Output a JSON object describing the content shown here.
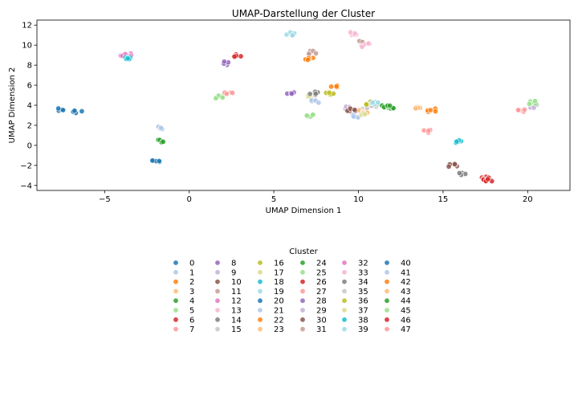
{
  "chart_data": {
    "type": "scatter",
    "title": "UMAP-Darstellung der Cluster",
    "xlabel": "UMAP Dimension 1",
    "ylabel": "UMAP Dimension 2",
    "xlim": [
      -9,
      22.5
    ],
    "ylim": [
      -4.5,
      12.5
    ],
    "x_ticks": [
      -5,
      0,
      5,
      10,
      15,
      20
    ],
    "y_ticks": [
      -4,
      -2,
      0,
      2,
      4,
      6,
      8,
      10,
      12
    ],
    "grid": false,
    "legend": {
      "title": "Cluster",
      "placement": "below",
      "columns": 6,
      "entries": [
        "0",
        "1",
        "2",
        "3",
        "4",
        "5",
        "6",
        "7",
        "8",
        "9",
        "10",
        "11",
        "12",
        "13",
        "14",
        "15",
        "16",
        "17",
        "18",
        "19",
        "20",
        "21",
        "22",
        "23",
        "24",
        "25",
        "26",
        "27",
        "28",
        "29",
        "30",
        "31",
        "32",
        "33",
        "34",
        "35",
        "36",
        "37",
        "38",
        "39",
        "40",
        "41",
        "42",
        "43",
        "44",
        "45",
        "46",
        "47"
      ]
    },
    "palette": [
      "#1f77b4",
      "#aec7e8",
      "#ff7f0e",
      "#ffbb78",
      "#2ca02c",
      "#98df8a",
      "#d62728",
      "#ff9896",
      "#9467bd",
      "#c5b0d5",
      "#8c564b",
      "#c49c94",
      "#e377c2",
      "#f7b6d2",
      "#7f7f7f",
      "#c7c7c7",
      "#bcbd22",
      "#dbdb8d",
      "#17becf",
      "#9edae5"
    ],
    "clusters": [
      {
        "label": "0",
        "x": -7.5,
        "y": 3.55
      },
      {
        "label": "1",
        "x": -1.7,
        "y": 1.75
      },
      {
        "label": "2",
        "x": 14.3,
        "y": 3.5
      },
      {
        "label": "3",
        "x": 10.2,
        "y": 3.4
      },
      {
        "label": "4",
        "x": -1.6,
        "y": 0.4
      },
      {
        "label": "5",
        "x": 7.2,
        "y": 3.0
      },
      {
        "label": "6",
        "x": 2.8,
        "y": 8.95
      },
      {
        "label": "7",
        "x": 14.0,
        "y": 1.4
      },
      {
        "label": "8",
        "x": 2.2,
        "y": 8.2
      },
      {
        "label": "9",
        "x": 9.5,
        "y": 3.7
      },
      {
        "label": "10",
        "x": 15.6,
        "y": -2.0
      },
      {
        "label": "11",
        "x": 7.3,
        "y": 9.3
      },
      {
        "label": "12",
        "x": -3.8,
        "y": 9.0
      },
      {
        "label": "13",
        "x": 9.8,
        "y": 11.2
      },
      {
        "label": "14",
        "x": 16.2,
        "y": -2.9
      },
      {
        "label": "15",
        "x": 10.5,
        "y": 3.6
      },
      {
        "label": "16",
        "x": 8.3,
        "y": 5.1
      },
      {
        "label": "17",
        "x": 7.0,
        "y": 4.8
      },
      {
        "label": "18",
        "x": 15.8,
        "y": 0.4
      },
      {
        "label": "19",
        "x": 6.0,
        "y": 11.1
      },
      {
        "label": "20",
        "x": -6.6,
        "y": 3.4
      },
      {
        "label": "21",
        "x": 9.8,
        "y": 2.9
      },
      {
        "label": "22",
        "x": 7.1,
        "y": 8.7
      },
      {
        "label": "23",
        "x": 10.3,
        "y": 3.4
      },
      {
        "label": "24",
        "x": 11.6,
        "y": 3.9
      },
      {
        "label": "25",
        "x": 1.8,
        "y": 4.8
      },
      {
        "label": "26",
        "x": 17.5,
        "y": -3.3
      },
      {
        "label": "27",
        "x": 2.3,
        "y": 5.2
      },
      {
        "label": "28",
        "x": 6.0,
        "y": 5.2
      },
      {
        "label": "29",
        "x": 20.4,
        "y": 3.9
      },
      {
        "label": "30",
        "x": 9.6,
        "y": 3.5
      },
      {
        "label": "31",
        "x": 10.2,
        "y": 10.4
      },
      {
        "label": "32",
        "x": -3.5,
        "y": 9.1
      },
      {
        "label": "33",
        "x": 10.4,
        "y": 10.0
      },
      {
        "label": "34",
        "x": 7.4,
        "y": 5.2
      },
      {
        "label": "35",
        "x": 11.0,
        "y": 4.0
      },
      {
        "label": "36",
        "x": 10.7,
        "y": 4.2
      },
      {
        "label": "37",
        "x": 10.4,
        "y": 3.1
      },
      {
        "label": "38",
        "x": -3.7,
        "y": 8.7
      },
      {
        "label": "39",
        "x": 11.0,
        "y": 4.2
      },
      {
        "label": "40",
        "x": -1.9,
        "y": -1.5
      },
      {
        "label": "41",
        "x": 7.5,
        "y": 4.4
      },
      {
        "label": "42",
        "x": 8.5,
        "y": 5.9
      },
      {
        "label": "43",
        "x": 13.6,
        "y": 3.7
      },
      {
        "label": "44",
        "x": 12.0,
        "y": 3.8
      },
      {
        "label": "45",
        "x": 20.3,
        "y": 4.3
      },
      {
        "label": "46",
        "x": 17.8,
        "y": -3.4
      },
      {
        "label": "47",
        "x": 19.7,
        "y": 3.5
      }
    ]
  }
}
